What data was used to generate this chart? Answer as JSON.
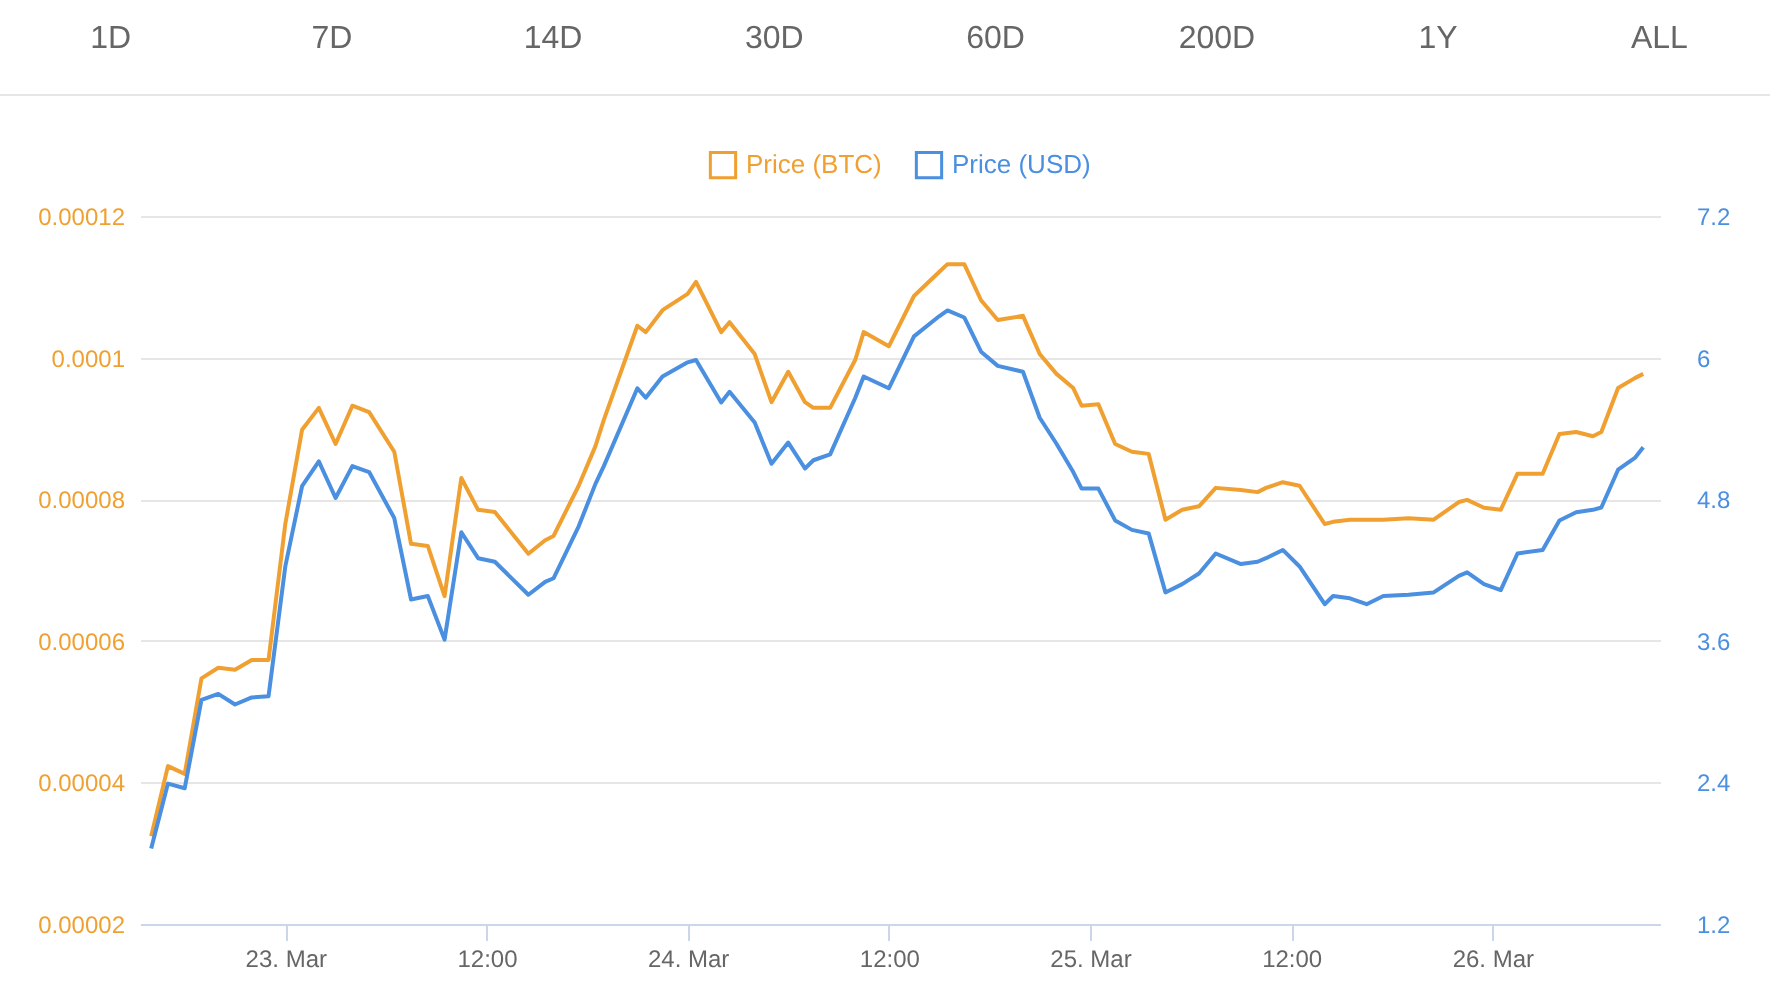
{
  "chart_data": {
    "type": "line",
    "annotations": [
      "1D",
      "7D",
      "14D",
      "30D",
      "60D",
      "200D",
      "1Y",
      "ALL"
    ],
    "x": [
      "--03-22T16:00",
      "--03-22T17:00",
      "--03-22T18:00",
      "--03-22T19:00",
      "--03-22T20:00",
      "--03-22T21:00",
      "--03-22T22:00",
      "--03-22T23:00",
      "--03-23T00:00",
      "--03-23T01:00",
      "--03-23T02:00",
      "--03-23T03:00",
      "--03-23T04:00",
      "--03-23T05:00",
      "--03-23T06:30",
      "--03-23T07:30",
      "--03-23T08:30",
      "--03-23T09:30",
      "--03-23T10:30",
      "--03-23T11:30",
      "--03-23T12:30",
      "--03-23T14:30",
      "--03-23T15:30",
      "--03-23T16:00",
      "--03-23T17:30",
      "--03-23T18:30",
      "--03-23T19:00",
      "--03-23T21:00",
      "--03-23T21:30",
      "--03-23T22:30",
      "--03-24T00:00",
      "--03-24T00:30",
      "--03-24T02:00",
      "--03-24T02:30",
      "--03-24T04:00",
      "--03-24T05:00",
      "--03-24T06:00",
      "--03-24T07:00",
      "--03-24T07:30",
      "--03-24T08:30",
      "--03-24T10:00",
      "--03-24T10:30",
      "--03-24T12:00",
      "--03-24T13:30",
      "--03-24T15:00",
      "--03-24T15:30",
      "--03-24T16:30",
      "--03-24T17:30",
      "--03-24T18:30",
      "--03-24T20:00",
      "--03-24T21:00",
      "--03-24T22:00",
      "--03-24T23:00",
      "--03-24T23:30",
      "--03-25T00:30",
      "--03-25T01:30",
      "--03-25T02:30",
      "--03-25T03:30",
      "--03-25T04:30",
      "--03-25T05:30",
      "--03-25T06:30",
      "--03-25T07:30",
      "--03-25T09:00",
      "--03-25T10:00",
      "--03-25T10:30",
      "--03-25T11:30",
      "--03-25T12:30",
      "--03-25T14:00",
      "--03-25T14:30",
      "--03-25T15:30",
      "--03-25T16:30",
      "--03-25T17:30",
      "--03-25T19:00",
      "--03-25T20:30",
      "--03-25T22:00",
      "--03-25T22:30",
      "--03-25T23:30",
      "--03-26T00:30",
      "--03-26T01:30",
      "--03-26T03:00",
      "--03-26T04:00",
      "--03-26T05:00",
      "--03-26T06:00",
      "--03-26T06:30",
      "--03-26T07:30",
      "--03-26T08:30",
      "--03-26T09:00"
    ],
    "series": [
      {
        "name": "Price (BTC)",
        "color": "#f0a030",
        "values": [
          3.24e-05,
          4.23e-05,
          4.12e-05,
          5.47e-05,
          5.62e-05,
          5.59e-05,
          5.73e-05,
          5.73e-05,
          7.65e-05,
          8.98e-05,
          9.29e-05,
          8.78e-05,
          9.32e-05,
          9.23e-05,
          8.67e-05,
          7.37e-05,
          7.34e-05,
          6.63e-05,
          8.3e-05,
          7.85e-05,
          7.82e-05,
          7.23e-05,
          7.42e-05,
          7.48e-05,
          8.19e-05,
          8.75e-05,
          9.12e-05,
          0.0001045,
          0.0001036,
          0.0001067,
          0.000109,
          0.0001107,
          0.0001036,
          0.000105,
          0.0001005,
          9.37e-05,
          9.8e-05,
          9.37e-05,
          9.29e-05,
          9.29e-05,
          9.97e-05,
          0.0001036,
          0.0001016,
          0.0001087,
          0.0001121,
          0.0001132,
          0.0001132,
          0.0001081,
          0.0001053,
          0.0001059,
          0.0001005,
          9.77e-05,
          9.57e-05,
          9.32e-05,
          9.34e-05,
          8.78e-05,
          8.67e-05,
          8.64e-05,
          7.71e-05,
          7.85e-05,
          7.9e-05,
          8.16e-05,
          8.13e-05,
          8.1e-05,
          8.16e-05,
          8.24e-05,
          8.19e-05,
          7.65e-05,
          7.68e-05,
          7.71e-05,
          7.71e-05,
          7.71e-05,
          7.73e-05,
          7.71e-05,
          7.96e-05,
          7.99e-05,
          7.88e-05,
          7.85e-05,
          8.36e-05,
          8.36e-05,
          8.92e-05,
          8.95e-05,
          8.89e-05,
          8.95e-05,
          9.57e-05,
          9.71e-05,
          9.77e-05
        ]
      },
      {
        "name": "Price (USD)",
        "color": "#4a8fe0",
        "axis": "y2",
        "values": [
          1.84,
          2.39,
          2.35,
          3.1,
          3.15,
          3.06,
          3.12,
          3.13,
          4.23,
          4.91,
          5.12,
          4.81,
          5.08,
          5.03,
          4.64,
          3.95,
          3.98,
          3.61,
          4.52,
          4.3,
          4.27,
          3.99,
          4.1,
          4.13,
          4.57,
          4.93,
          5.08,
          5.74,
          5.66,
          5.84,
          5.96,
          5.98,
          5.62,
          5.71,
          5.45,
          5.1,
          5.28,
          5.06,
          5.13,
          5.18,
          5.66,
          5.84,
          5.74,
          6.18,
          6.35,
          6.4,
          6.34,
          6.05,
          5.93,
          5.88,
          5.49,
          5.27,
          5.03,
          4.89,
          4.89,
          4.62,
          4.54,
          4.51,
          4.01,
          4.08,
          4.17,
          4.34,
          4.25,
          4.27,
          4.3,
          4.37,
          4.23,
          3.91,
          3.98,
          3.96,
          3.91,
          3.98,
          3.99,
          4.01,
          4.15,
          4.18,
          4.08,
          4.03,
          4.34,
          4.37,
          4.62,
          4.69,
          4.71,
          4.73,
          5.05,
          5.15,
          5.24
        ]
      }
    ],
    "xlim": [
      "--03-22T15:20",
      "--03-26T10:00"
    ],
    "xticks": [
      {
        "value": "--03-23T00:00",
        "label": "23. Mar"
      },
      {
        "value": "--03-23T12:00",
        "label": "12:00"
      },
      {
        "value": "--03-24T00:00",
        "label": "24. Mar"
      },
      {
        "value": "--03-24T12:00",
        "label": "12:00"
      },
      {
        "value": "--03-25T00:00",
        "label": "25. Mar"
      },
      {
        "value": "--03-25T12:00",
        "label": "12:00"
      },
      {
        "value": "--03-26T00:00",
        "label": "26. Mar"
      }
    ],
    "ylim": [
      2e-05,
      0.00012
    ],
    "yticks": [
      {
        "value": 2e-05,
        "label": "0.00002"
      },
      {
        "value": 4e-05,
        "label": "0.00004"
      },
      {
        "value": 6e-05,
        "label": "0.00006"
      },
      {
        "value": 8e-05,
        "label": "0.00008"
      },
      0.0001,
      0.00012
    ],
    "y2lim": [
      1.2,
      7.2
    ],
    "y2ticks": [
      1.2,
      2.4,
      3.6,
      4.8,
      6,
      7.2
    ],
    "grid": "y",
    "legend": "top",
    "marker": "none",
    "line_style": "solid"
  }
}
